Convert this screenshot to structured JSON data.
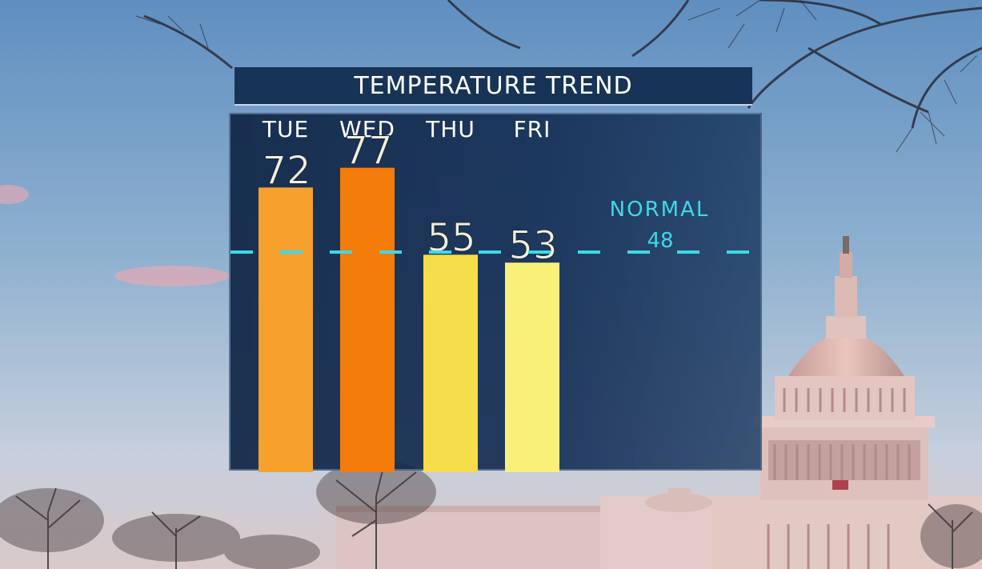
{
  "chart_data": {
    "type": "bar",
    "title": "TEMPERATURE TREND",
    "categories": [
      "TUE",
      "WED",
      "THU",
      "FRI"
    ],
    "values": [
      72,
      77,
      55,
      53
    ],
    "bar_colors": [
      "#f6a12c",
      "#f47c0a",
      "#f6de4a",
      "#f9f07a"
    ],
    "reference_line": {
      "label": "NORMAL",
      "value": 48,
      "color": "#3fd8e8"
    },
    "ylim": [
      0,
      100
    ]
  },
  "colors": {
    "panel": "#173456",
    "label_text": "#f2f0dc",
    "sky_top": "#5f8fc0"
  }
}
